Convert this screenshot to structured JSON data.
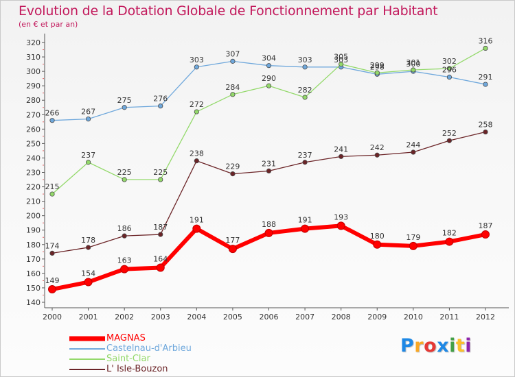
{
  "header": {
    "title": "Evolution de la Dotation Globale de Fonctionnement par Habitant",
    "subtitle": "(en € et par an)"
  },
  "logo": {
    "letters": [
      "P",
      "r",
      "o",
      "x",
      "i",
      "t",
      "i"
    ],
    "colors": [
      "#1e88e5",
      "#f9a825",
      "#e53935",
      "#1e88e5",
      "#43a047",
      "#fbc02d",
      "#8e24aa"
    ]
  },
  "chart_data": {
    "type": "line",
    "title": "Evolution de la Dotation Globale de Fonctionnement par Habitant",
    "subtitle": "(en € et par an)",
    "xlabel": "",
    "ylabel": "",
    "x": [
      "2000",
      "2001",
      "2002",
      "2003",
      "2004",
      "2005",
      "2006",
      "2007",
      "2008",
      "2009",
      "2010",
      "2011",
      "2012"
    ],
    "ylim": [
      140,
      320
    ],
    "yticks": [
      140,
      150,
      160,
      170,
      180,
      190,
      200,
      210,
      220,
      230,
      240,
      250,
      260,
      270,
      280,
      290,
      300,
      310,
      320
    ],
    "grid": false,
    "legend_position": "bottom-left",
    "series": [
      {
        "name": "MAGNAS",
        "color": "#ff0000",
        "values": [
          149,
          154,
          163,
          164,
          191,
          177,
          188,
          191,
          193,
          180,
          179,
          182,
          187
        ]
      },
      {
        "name": "Castelnau-d'Arbieu",
        "color": "#6fa8dc",
        "values": [
          266,
          267,
          275,
          276,
          303,
          307,
          304,
          303,
          303,
          298,
          300,
          296,
          291
        ]
      },
      {
        "name": "Saint-Clar",
        "color": "#93d96a",
        "values": [
          215,
          237,
          225,
          225,
          272,
          284,
          290,
          282,
          305,
          299,
          301,
          302,
          316
        ]
      },
      {
        "name": "L' Isle-Bouzon",
        "color": "#6b2427",
        "values": [
          174,
          178,
          186,
          187,
          238,
          229,
          231,
          237,
          241,
          242,
          244,
          252,
          258
        ]
      }
    ]
  }
}
